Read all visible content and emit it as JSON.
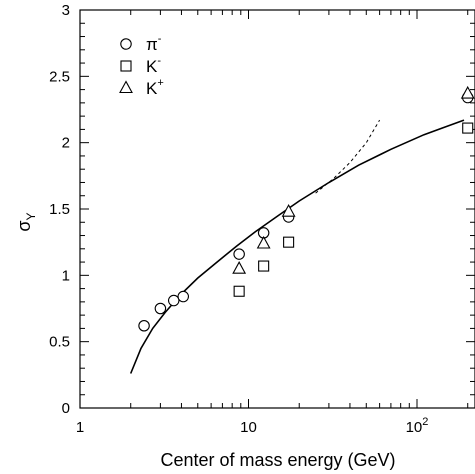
{
  "chart_data": {
    "type": "scatter",
    "xlabel": "Center of mass energy (GeV)",
    "ylabel": "σ",
    "ylabel_sub": "Y",
    "xscale": "log",
    "xlim": [
      1,
      200
    ],
    "ylim": [
      0,
      3
    ],
    "grid": false,
    "legend_position": "top-left",
    "x_ticks": [
      {
        "value": 1,
        "label": "1"
      },
      {
        "value": 10,
        "label": "10"
      },
      {
        "value": 100,
        "label": "10",
        "sup": "2"
      }
    ],
    "y_ticks": [
      {
        "value": 0,
        "label": "0"
      },
      {
        "value": 0.5,
        "label": "0.5"
      },
      {
        "value": 1,
        "label": "1"
      },
      {
        "value": 1.5,
        "label": "1.5"
      },
      {
        "value": 2,
        "label": "2"
      },
      {
        "value": 2.5,
        "label": "2.5"
      },
      {
        "value": 3,
        "label": "3"
      }
    ],
    "series": [
      {
        "name": "π",
        "sup": "-",
        "marker": "circle",
        "points": [
          {
            "x": 2.4,
            "y": 0.62
          },
          {
            "x": 3.0,
            "y": 0.75
          },
          {
            "x": 3.6,
            "y": 0.81
          },
          {
            "x": 4.1,
            "y": 0.84
          },
          {
            "x": 8.8,
            "y": 1.16
          },
          {
            "x": 12.3,
            "y": 1.32
          },
          {
            "x": 17.3,
            "y": 1.44
          },
          {
            "x": 200,
            "y": 2.34
          }
        ]
      },
      {
        "name": "K",
        "sup": "-",
        "marker": "square",
        "points": [
          {
            "x": 8.8,
            "y": 0.88
          },
          {
            "x": 12.3,
            "y": 1.07
          },
          {
            "x": 17.3,
            "y": 1.25
          },
          {
            "x": 200,
            "y": 2.11
          }
        ]
      },
      {
        "name": "K",
        "sup": "+",
        "marker": "triangle",
        "points": [
          {
            "x": 8.8,
            "y": 1.05
          },
          {
            "x": 12.3,
            "y": 1.24
          },
          {
            "x": 17.3,
            "y": 1.48
          },
          {
            "x": 200,
            "y": 2.37
          }
        ]
      }
    ],
    "curves": [
      {
        "style": "solid",
        "points": [
          {
            "x": 2.0,
            "y": 0.26
          },
          {
            "x": 2.3,
            "y": 0.45
          },
          {
            "x": 2.7,
            "y": 0.6
          },
          {
            "x": 3.2,
            "y": 0.72
          },
          {
            "x": 4.0,
            "y": 0.86
          },
          {
            "x": 5.0,
            "y": 0.98
          },
          {
            "x": 6.5,
            "y": 1.1
          },
          {
            "x": 8.5,
            "y": 1.22
          },
          {
            "x": 11,
            "y": 1.33
          },
          {
            "x": 15,
            "y": 1.45
          },
          {
            "x": 20,
            "y": 1.56
          },
          {
            "x": 30,
            "y": 1.7
          },
          {
            "x": 45,
            "y": 1.83
          },
          {
            "x": 70,
            "y": 1.95
          },
          {
            "x": 110,
            "y": 2.06
          },
          {
            "x": 190,
            "y": 2.17
          }
        ]
      },
      {
        "style": "dashed",
        "points": [
          {
            "x": 25,
            "y": 1.62
          },
          {
            "x": 32,
            "y": 1.73
          },
          {
            "x": 40,
            "y": 1.85
          },
          {
            "x": 50,
            "y": 2.0
          },
          {
            "x": 60,
            "y": 2.17
          }
        ]
      }
    ]
  }
}
